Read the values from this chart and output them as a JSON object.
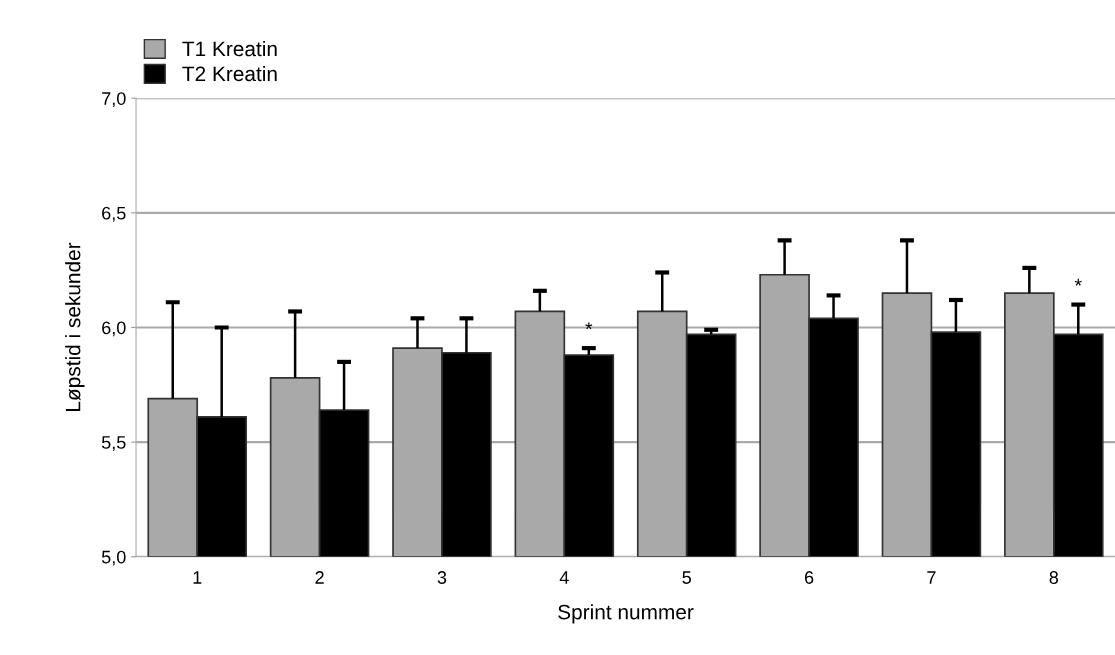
{
  "chart_data": {
    "type": "bar",
    "xlabel": "Sprint nummer",
    "ylabel": "Løpstid i sekunder",
    "categories": [
      "1",
      "2",
      "3",
      "4",
      "5",
      "6",
      "7",
      "8"
    ],
    "series": [
      {
        "name": "T1 Kreatin",
        "color": "#a9a9a9",
        "values": [
          5.69,
          5.78,
          5.91,
          6.07,
          6.07,
          6.23,
          6.15,
          6.15
        ],
        "errors": [
          [
            5.69,
            6.11
          ],
          [
            5.78,
            6.07
          ],
          [
            5.91,
            6.04
          ],
          [
            6.07,
            6.16
          ],
          [
            6.07,
            6.24
          ],
          [
            6.23,
            6.38
          ],
          [
            6.15,
            6.38
          ],
          [
            6.15,
            6.26
          ]
        ]
      },
      {
        "name": "T2 Kreatin",
        "color": "#000000",
        "values": [
          5.61,
          5.64,
          5.89,
          5.88,
          5.97,
          6.04,
          5.98,
          5.97
        ],
        "errors": [
          [
            5.61,
            6.0
          ],
          [
            5.64,
            5.85
          ],
          [
            5.89,
            6.04
          ],
          [
            5.88,
            5.91
          ],
          [
            5.97,
            5.99
          ],
          [
            6.04,
            6.14
          ],
          [
            5.98,
            6.12
          ],
          [
            5.97,
            6.1
          ]
        ],
        "value_labels": [
          null,
          null,
          null,
          "*",
          null,
          null,
          null,
          "*"
        ]
      }
    ],
    "ylim": [
      5.0,
      7.0
    ],
    "yticks": [
      {
        "value": 5.0,
        "label": "5,0"
      },
      {
        "value": 5.5,
        "label": "5,5"
      },
      {
        "value": 6.0,
        "label": "6,0"
      },
      {
        "value": 6.5,
        "label": "6,5"
      },
      {
        "value": 7.0,
        "label": "7,0"
      }
    ],
    "grid": "y",
    "legend": "top left"
  }
}
